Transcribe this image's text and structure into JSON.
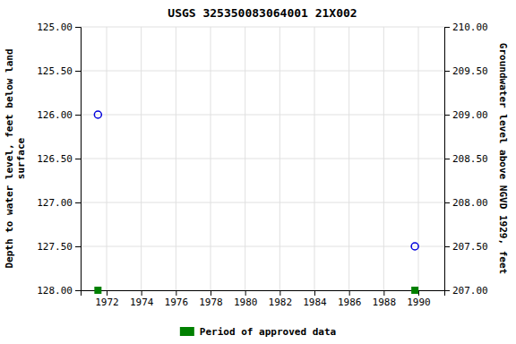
{
  "chart_data": {
    "type": "scatter",
    "title": "USGS 325350083064001 21X002",
    "y_label": "Depth to water level, feet below land\nsurface",
    "y2_label": "Groundwater level above NGVD 1929, feet",
    "xlim": [
      1970.5,
      1991.5
    ],
    "xticks": [
      1972,
      1974,
      1976,
      1978,
      1980,
      1982,
      1984,
      1986,
      1988,
      1990
    ],
    "ylim": [
      128.0,
      125.0
    ],
    "yticks": [
      {
        "value": 125.0,
        "label": "125.00"
      },
      {
        "value": 125.5,
        "label": "125.50"
      },
      {
        "value": 126.0,
        "label": "126.00"
      },
      {
        "value": 126.5,
        "label": "126.50"
      },
      {
        "value": 127.0,
        "label": "127.00"
      },
      {
        "value": 127.5,
        "label": "127.50"
      },
      {
        "value": 128.0,
        "label": "128.00"
      }
    ],
    "y2lim": [
      207.0,
      210.0
    ],
    "y2ticks": [
      {
        "value": 207.0,
        "label": "207.00"
      },
      {
        "value": 207.5,
        "label": "207.50"
      },
      {
        "value": 208.0,
        "label": "208.00"
      },
      {
        "value": 208.5,
        "label": "208.50"
      },
      {
        "value": 209.0,
        "label": "209.00"
      },
      {
        "value": 209.5,
        "label": "209.50"
      },
      {
        "value": 210.0,
        "label": "210.00"
      }
    ],
    "grid": true,
    "legend": "bottom",
    "series": [
      {
        "color": "#0000dd",
        "marker": "circle",
        "x": [
          1971.5,
          1989.8
        ],
        "values": [
          126.0,
          127.5
        ]
      },
      {
        "name": "Period of approved data",
        "color": "#008000",
        "marker": "square",
        "x": [
          1971.5,
          1989.8
        ],
        "values": [
          128.0,
          128.0
        ]
      }
    ]
  }
}
